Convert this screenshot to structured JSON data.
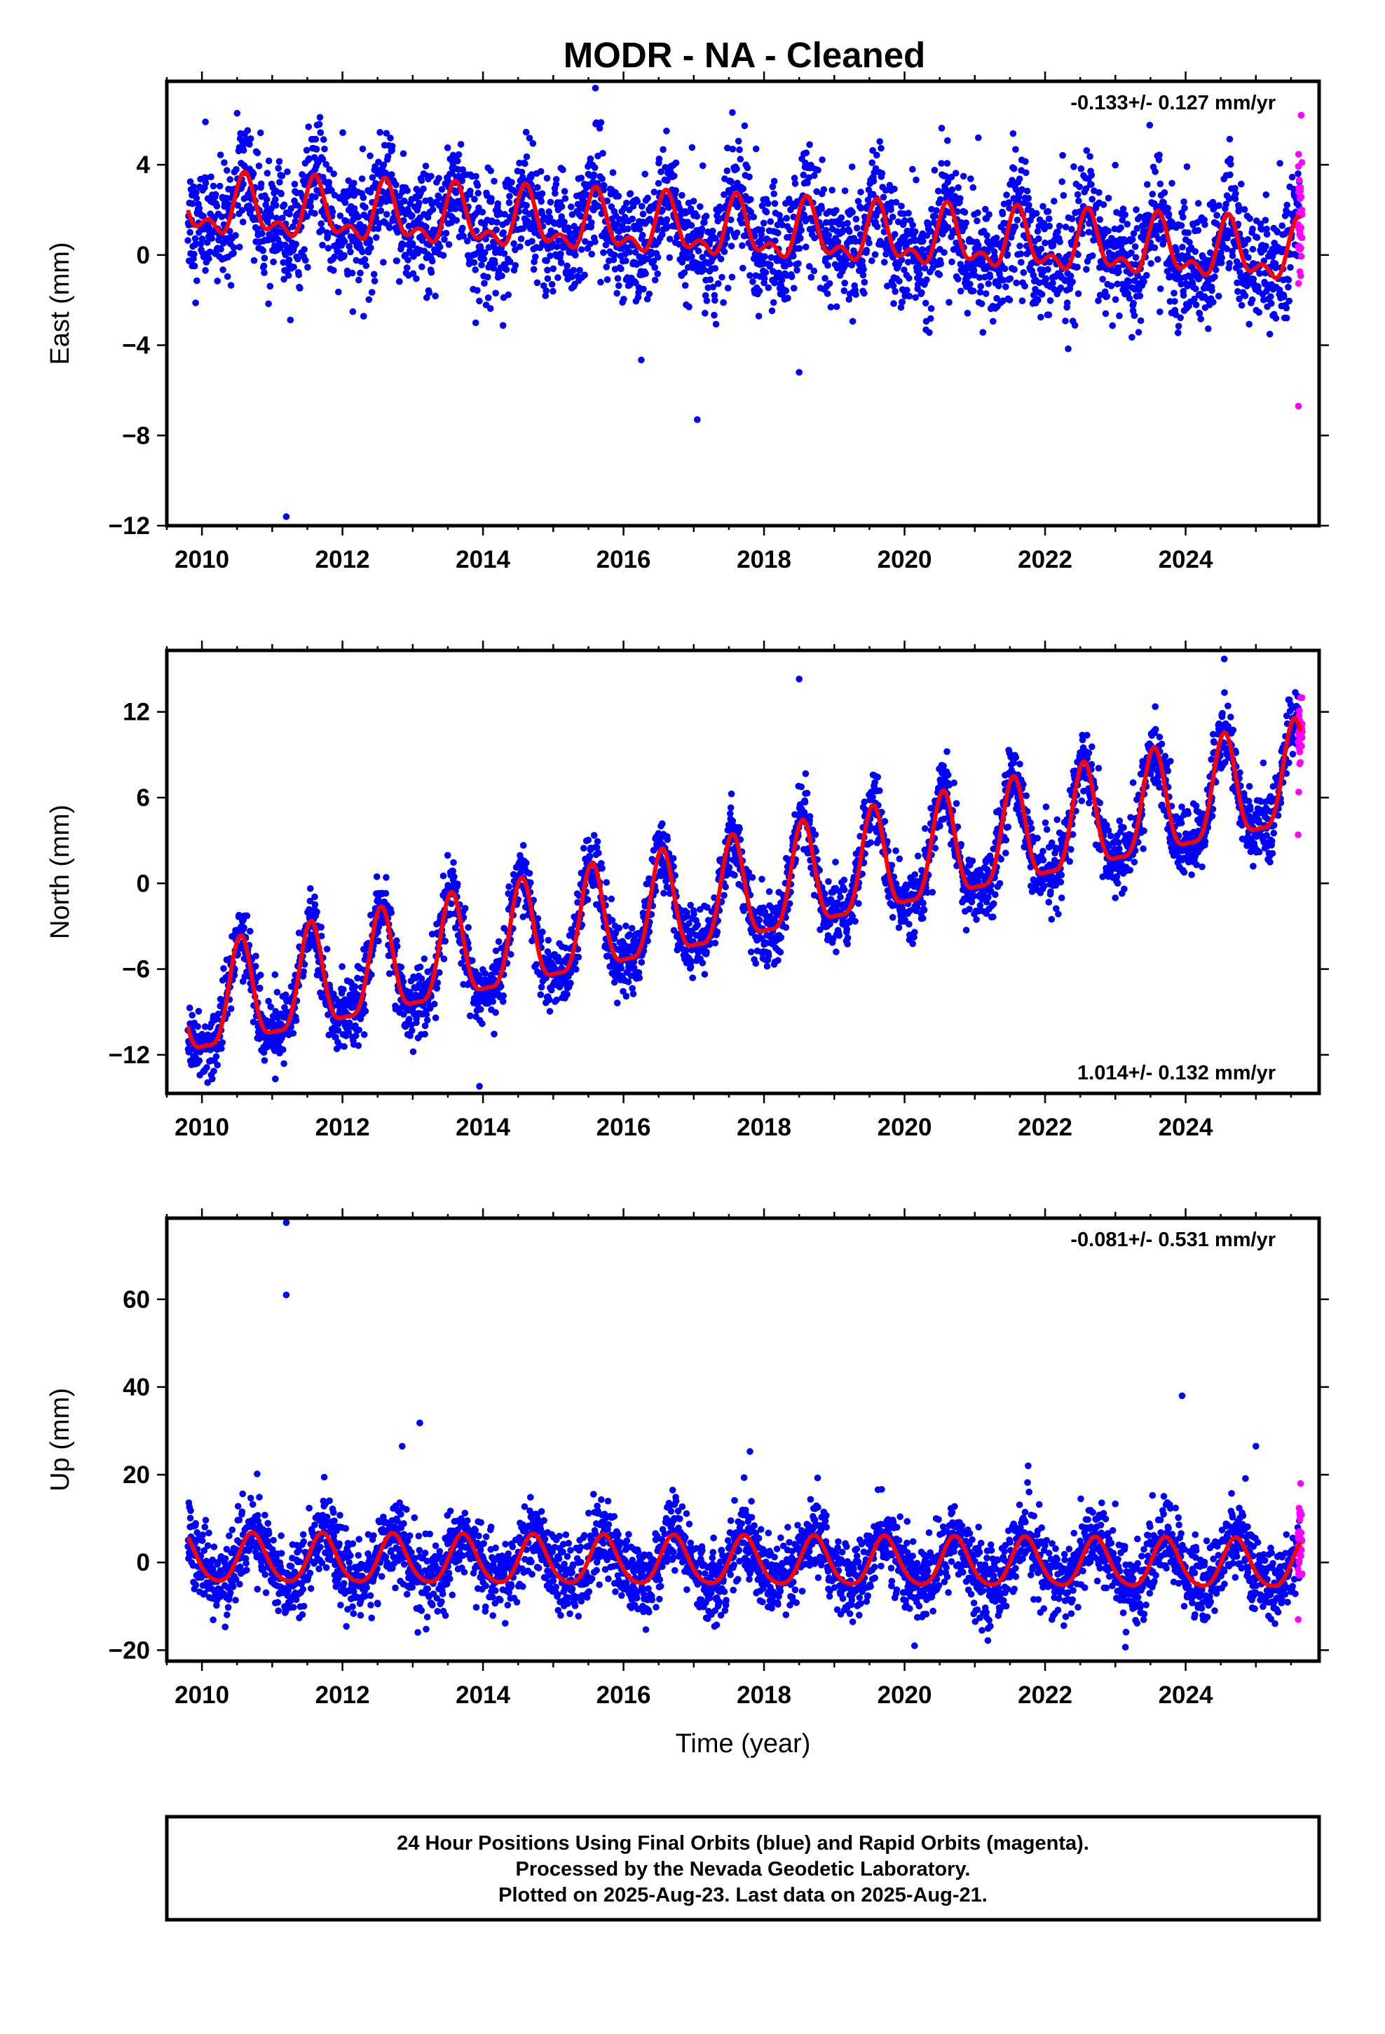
{
  "title": "MODR  - NA - Cleaned",
  "colors": {
    "final": "#0000ff",
    "rapid": "#ff00ff",
    "fit": "#ff0000"
  },
  "chart_data": [
    {
      "type": "scatter",
      "component": "east",
      "ylabel": "East (mm)",
      "xlim": [
        2009.5,
        2025.9
      ],
      "ylim": [
        -12,
        7.7
      ],
      "yticks": [
        -12,
        -8,
        -4,
        0,
        4
      ],
      "xticks": [
        2010,
        2012,
        2014,
        2016,
        2018,
        2020,
        2022,
        2024
      ],
      "rate_label": "-0.133+/- 0.127 mm/yr",
      "rate_position": "top-right",
      "model": {
        "offset": 1.0,
        "rate": -0.133,
        "annual_amp": 1.1,
        "annual_peak": 0.62,
        "semiannual_amp": 0.65,
        "semiannual_peak": 0.6,
        "scatter": 1.3,
        "t0": 2017.7
      },
      "outliers": [
        [
          2017.05,
          -7.3
        ],
        [
          2011.2,
          -11.6
        ],
        [
          2015.6,
          7.4
        ],
        [
          2021.05,
          5.2
        ],
        [
          2010.05,
          5.9
        ],
        [
          2018.5,
          -5.2
        ]
      ],
      "rapid_range": [
        -6.7,
        6.2
      ],
      "data_start": 2009.8,
      "data_end": 2025.64
    },
    {
      "type": "scatter",
      "component": "north",
      "ylabel": "North (mm)",
      "xlim": [
        2009.5,
        2025.9
      ],
      "ylim": [
        -14.7,
        16.3
      ],
      "yticks": [
        -12,
        -6,
        0,
        6,
        12
      ],
      "xticks": [
        2010,
        2012,
        2014,
        2016,
        2018,
        2020,
        2022,
        2024
      ],
      "rate_label": "1.014+/- 0.132 mm/yr",
      "rate_position": "bottom-right",
      "model": {
        "offset": -1.0,
        "rate": 1.014,
        "annual_amp": 3.6,
        "annual_peak": 0.55,
        "semiannual_amp": 1.0,
        "semiannual_peak": 0.05,
        "scatter": 1.2,
        "t0": 2017.7
      },
      "outliers": [
        [
          2009.85,
          -12.7
        ],
        [
          2013.95,
          -14.2
        ],
        [
          2018.5,
          14.3
        ],
        [
          2024.55,
          15.7
        ]
      ],
      "rapid_range": [
        3.4,
        13.0
      ],
      "data_start": 2009.8,
      "data_end": 2025.64
    },
    {
      "type": "scatter",
      "component": "up",
      "ylabel": "Up (mm)",
      "xlabel": "Time (year)",
      "xlim": [
        2009.5,
        2025.9
      ],
      "ylim": [
        -22.5,
        78.5
      ],
      "yticks": [
        -20,
        0,
        20,
        40,
        60
      ],
      "xticks": [
        2010,
        2012,
        2014,
        2016,
        2018,
        2020,
        2022,
        2024
      ],
      "rate_label": "-0.081+/- 0.531 mm/yr",
      "rate_position": "top-right",
      "model": {
        "offset": 0.0,
        "rate": -0.081,
        "annual_amp": 5.5,
        "annual_peak": 0.72,
        "semiannual_amp": 0.8,
        "semiannual_peak": 0.2,
        "scatter": 4.3,
        "t0": 2017.7
      },
      "outliers": [
        [
          2011.2,
          77.5
        ],
        [
          2011.2,
          61.0
        ],
        [
          2013.1,
          31.8
        ],
        [
          2023.95,
          38.0
        ],
        [
          2025.0,
          26.5
        ],
        [
          2017.8,
          25.3
        ],
        [
          2012.85,
          26.5
        ]
      ],
      "rapid_range": [
        -13.0,
        18.0
      ],
      "data_start": 2009.8,
      "data_end": 2025.64
    }
  ],
  "footer": {
    "line1": "24 Hour Positions Using Final Orbits (blue) and Rapid Orbits (magenta).",
    "line2": "Processed by the Nevada Geodetic Laboratory.",
    "line3": "Plotted on 2025-Aug-23. Last data on 2025-Aug-21."
  }
}
